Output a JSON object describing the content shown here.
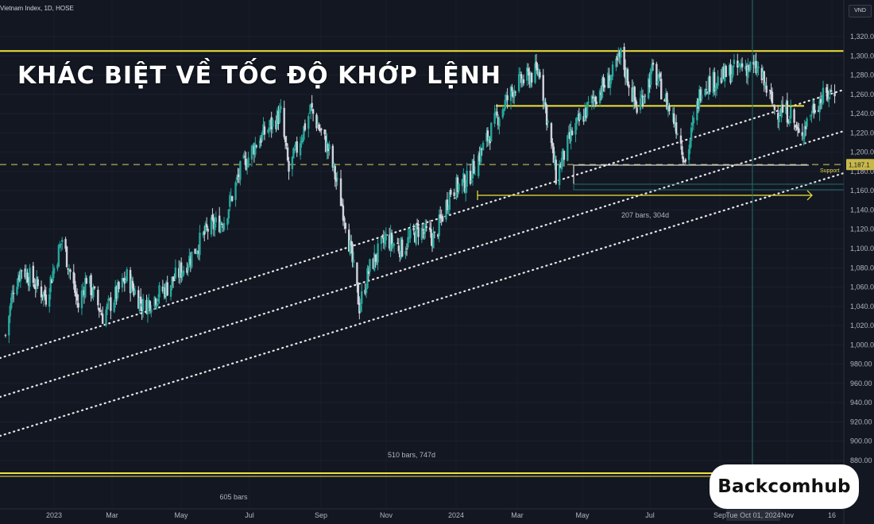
{
  "header": {
    "symbol_label": "Vietnam Index, 1D, HOSE",
    "currency": "VND"
  },
  "headline": "KHÁC BIỆT VỀ TỐC ĐỘ KHỚP LỆNH",
  "brand": {
    "name": "Backcomhub",
    "icon": "b-logo-icon"
  },
  "colors": {
    "background": "#131722",
    "up": "#26a69a",
    "down": "#d1d4dc",
    "yellow_line": "#f2e33b",
    "dashed_line": "#8d8d4a",
    "crosshair": "#1f6f6a"
  },
  "chart_data": {
    "type": "candlestick",
    "title": "",
    "ylim": [
      860,
      1330
    ],
    "y_ticks": [
      "1,320.00",
      "1,300.00",
      "1,280.00",
      "1,260.00",
      "1,240.00",
      "1,220.00",
      "1,200.00",
      "1,180.00",
      "1,160.00",
      "1,140.00",
      "1,120.00",
      "1,100.00",
      "1,080.00",
      "1,060.00",
      "1,040.00",
      "1,020.00",
      "1,000.00",
      "980.00",
      "960.00",
      "940.00",
      "920.00",
      "900.00",
      "880.00"
    ],
    "x_ticks": [
      "2023",
      "Mar",
      "May",
      "Jul",
      "Sep",
      "Nov",
      "2024",
      "Mar",
      "May",
      "Jul",
      "Sep",
      "Nov",
      "16"
    ],
    "x_highlight_label": "Tue Oct 01, 2024",
    "price_marker": "1,187.1",
    "support_label": "Support",
    "key_price_path": [
      [
        "2022-12-30",
        1010
      ],
      [
        "2023-01-06",
        1060
      ],
      [
        "2023-01-13",
        1080
      ],
      [
        "2023-02-03",
        1050
      ],
      [
        "2023-02-17",
        1110
      ],
      [
        "2023-03-03",
        1040
      ],
      [
        "2023-03-10",
        1070
      ],
      [
        "2023-03-24",
        1030
      ],
      [
        "2023-04-14",
        1070
      ],
      [
        "2023-04-28",
        1040
      ],
      [
        "2023-05-19",
        1060
      ],
      [
        "2023-06-02",
        1080
      ],
      [
        "2023-06-23",
        1120
      ],
      [
        "2023-07-07",
        1130
      ],
      [
        "2023-07-21",
        1180
      ],
      [
        "2023-08-04",
        1210
      ],
      [
        "2023-08-25",
        1240
      ],
      [
        "2023-09-01",
        1180
      ],
      [
        "2023-09-20",
        1245
      ],
      [
        "2023-10-06",
        1200
      ],
      [
        "2023-10-20",
        1130
      ],
      [
        "2023-11-01",
        1040
      ],
      [
        "2023-11-10",
        1080
      ],
      [
        "2023-11-24",
        1110
      ],
      [
        "2023-12-08",
        1100
      ],
      [
        "2023-12-22",
        1120
      ],
      [
        "2024-01-05",
        1110
      ],
      [
        "2024-01-19",
        1160
      ],
      [
        "2024-02-02",
        1170
      ],
      [
        "2024-03-01",
        1240
      ],
      [
        "2024-03-15",
        1270
      ],
      [
        "2024-04-05",
        1285
      ],
      [
        "2024-04-19",
        1175
      ],
      [
        "2024-05-03",
        1220
      ],
      [
        "2024-05-24",
        1260
      ],
      [
        "2024-06-07",
        1280
      ],
      [
        "2024-06-14",
        1300
      ],
      [
        "2024-06-28",
        1245
      ],
      [
        "2024-07-12",
        1285
      ],
      [
        "2024-08-02",
        1225
      ],
      [
        "2024-08-09",
        1190
      ],
      [
        "2024-08-23",
        1270
      ],
      [
        "2024-09-06",
        1275
      ],
      [
        "2024-09-27",
        1290
      ],
      [
        "2024-10-11",
        1285
      ],
      [
        "2024-10-25",
        1245
      ],
      [
        "2024-11-08",
        1240
      ],
      [
        "2024-11-15",
        1215
      ],
      [
        "2024-11-29",
        1250
      ],
      [
        "2024-12-16",
        1265
      ]
    ],
    "annotations": {
      "range_top_line": 1305,
      "mid_resistance_line": 1248,
      "support_dashed_line": 1187.1,
      "lower_support_line": 1192,
      "base_line": 867,
      "measure_1_label": "207 bars, 304d",
      "measure_2_label": "510 bars, 747d",
      "measure_3_label": "605 bars"
    }
  }
}
